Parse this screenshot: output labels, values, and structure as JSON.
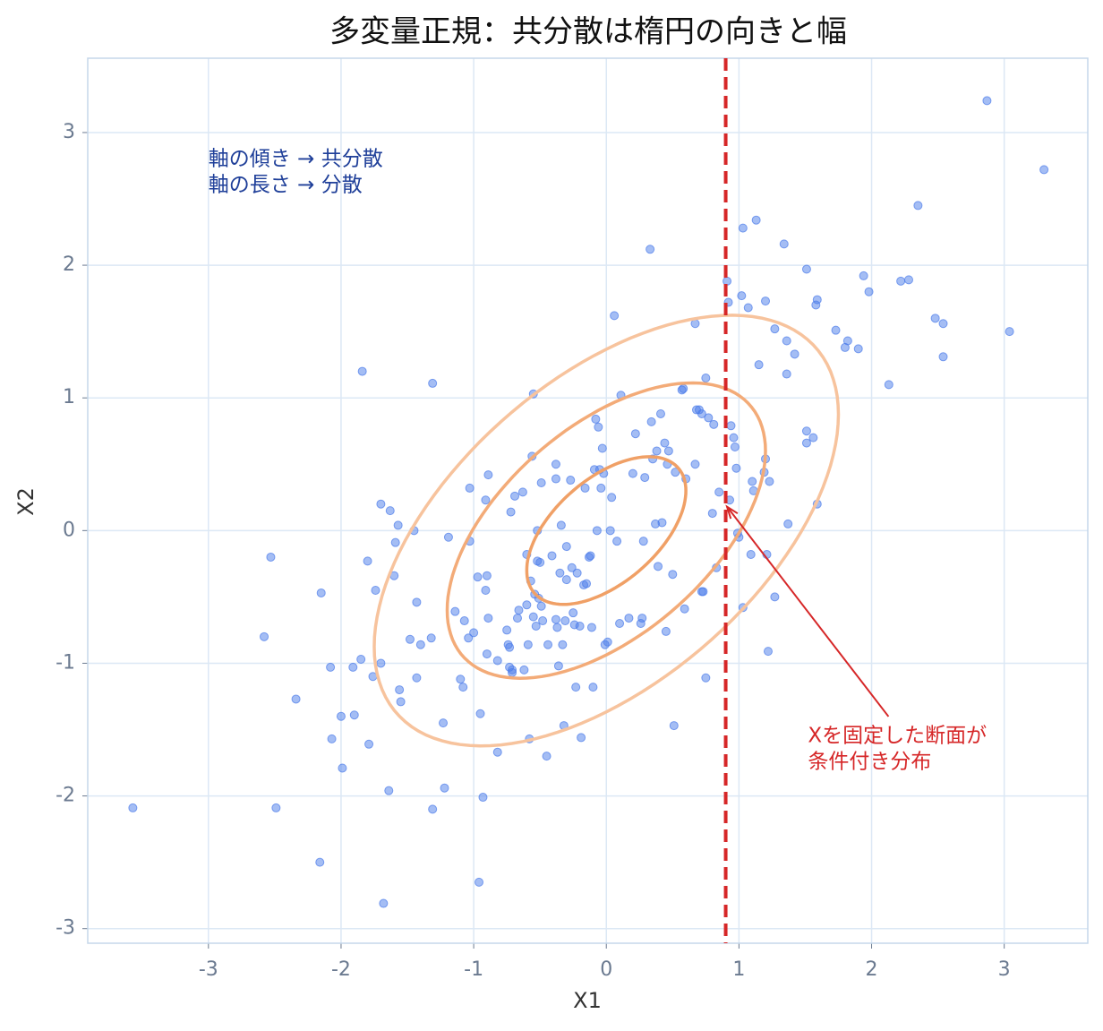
{
  "chart_data": {
    "type": "scatter",
    "title": "多変量正規：共分散は楕円の向きと幅",
    "x_label": "X1",
    "y_label": "X2",
    "xlim": [
      -3.91,
      3.63
    ],
    "ylim": [
      -3.11,
      3.56
    ],
    "xticks": [
      -3,
      -2,
      -1,
      0,
      1,
      2,
      3
    ],
    "yticks": [
      -3,
      -2,
      -1,
      0,
      1,
      2,
      3
    ],
    "grid": true,
    "points": {
      "color": "#4a7bea",
      "x": [
        -3.57,
        -2.53,
        -2.58,
        -2.49,
        -2.34,
        -2.15,
        -2.16,
        -2.08,
        -2.07,
        -2.0,
        -1.99,
        -1.91,
        -1.9,
        -1.85,
        -1.84,
        -1.8,
        -1.79,
        -1.76,
        -1.74,
        -1.7,
        -1.7,
        -1.68,
        -1.64,
        -1.63,
        -1.6,
        -1.59,
        -1.57,
        -1.56,
        -1.55,
        -1.48,
        -1.45,
        -1.43,
        -1.43,
        -1.4,
        -1.32,
        -1.31,
        -1.31,
        -1.23,
        -1.22,
        -1.19,
        -1.14,
        -1.1,
        -1.08,
        -1.07,
        -1.04,
        -1.03,
        -1.03,
        -1.0,
        -0.97,
        -0.96,
        -0.95,
        -0.93,
        -0.91,
        -0.91,
        -0.9,
        -0.9,
        -0.89,
        -0.89,
        -0.82,
        -0.82,
        -0.75,
        -0.74,
        -0.73,
        -0.73,
        -0.72,
        -0.71,
        -0.71,
        -0.69,
        -0.67,
        -0.66,
        -0.63,
        -0.62,
        -0.6,
        -0.6,
        -0.59,
        -0.58,
        -0.57,
        -0.56,
        -0.55,
        -0.55,
        -0.54,
        -0.53,
        -0.52,
        -0.52,
        -0.51,
        -0.5,
        -0.49,
        -0.49,
        -0.48,
        -0.45,
        -0.44,
        -0.41,
        -0.38,
        -0.38,
        -0.38,
        -0.37,
        -0.36,
        -0.35,
        -0.34,
        -0.33,
        -0.32,
        -0.31,
        -0.3,
        -0.3,
        -0.27,
        -0.26,
        -0.25,
        -0.24,
        -0.23,
        -0.22,
        -0.2,
        -0.19,
        -0.17,
        -0.16,
        -0.15,
        -0.13,
        -0.12,
        -0.11,
        -0.1,
        -0.09,
        -0.08,
        -0.07,
        -0.06,
        -0.05,
        -0.04,
        -0.03,
        -0.02,
        -0.01,
        0.01,
        0.03,
        0.04,
        0.06,
        0.08,
        0.1,
        0.11,
        0.17,
        0.2,
        0.22,
        0.26,
        0.27,
        0.28,
        0.29,
        0.33,
        0.34,
        0.35,
        0.37,
        0.38,
        0.39,
        0.41,
        0.42,
        0.44,
        0.45,
        0.46,
        0.47,
        0.5,
        0.51,
        0.52,
        0.57,
        0.58,
        0.59,
        0.6,
        0.67,
        0.67,
        0.68,
        0.7,
        0.72,
        0.72,
        0.73,
        0.75,
        0.75,
        0.77,
        0.8,
        0.81,
        0.83,
        0.85,
        0.91,
        0.92,
        0.93,
        0.94,
        0.96,
        0.97,
        0.98,
        0.99,
        1.0,
        1.02,
        1.03,
        1.03,
        1.07,
        1.09,
        1.1,
        1.11,
        1.13,
        1.15,
        1.19,
        1.2,
        1.2,
        1.21,
        1.22,
        1.23,
        1.27,
        1.27,
        1.34,
        1.36,
        1.36,
        1.37,
        1.42,
        1.51,
        1.51,
        1.51,
        1.56,
        1.58,
        1.59,
        1.59,
        1.73,
        1.8,
        1.82,
        1.9,
        1.94,
        1.98,
        2.13,
        2.22,
        2.28,
        2.35,
        2.48,
        2.54,
        2.54,
        2.87,
        3.04,
        3.3
      ],
      "y": [
        -2.09,
        -0.2,
        -0.8,
        -2.09,
        -1.27,
        -0.47,
        -2.5,
        -1.03,
        -1.57,
        -1.4,
        -1.79,
        -1.03,
        -1.39,
        -0.97,
        1.2,
        -0.23,
        -1.61,
        -1.1,
        -0.45,
        0.2,
        -1.0,
        -2.81,
        -1.96,
        0.15,
        -0.34,
        -0.09,
        0.04,
        -1.2,
        -1.29,
        -0.82,
        0.0,
        -1.11,
        -0.54,
        -0.86,
        -0.81,
        -2.1,
        1.11,
        -1.45,
        -1.94,
        -0.05,
        -0.61,
        -1.12,
        -1.18,
        -0.68,
        -0.81,
        -0.08,
        0.32,
        -0.77,
        -0.35,
        -2.65,
        -1.38,
        -2.01,
        0.23,
        -0.45,
        -0.93,
        -0.34,
        0.42,
        -0.66,
        -1.67,
        -0.98,
        -0.75,
        -0.86,
        -0.88,
        -1.03,
        0.14,
        -1.07,
        -1.05,
        0.26,
        -0.66,
        -0.6,
        0.29,
        -1.05,
        -0.18,
        -0.56,
        -0.86,
        -1.57,
        -0.38,
        0.56,
        -0.65,
        1.03,
        -0.48,
        -0.72,
        -0.23,
        0.0,
        -0.51,
        -0.24,
        0.36,
        -0.57,
        -0.68,
        -1.7,
        -0.86,
        -0.19,
        0.5,
        0.39,
        -0.67,
        -0.73,
        -1.02,
        -0.32,
        0.04,
        -0.86,
        -1.47,
        -0.68,
        -0.37,
        -0.12,
        0.38,
        -0.28,
        -0.62,
        -0.71,
        -1.18,
        -0.32,
        -0.72,
        -1.56,
        -0.41,
        0.32,
        -0.4,
        -0.2,
        -0.19,
        -0.73,
        -1.18,
        0.46,
        0.84,
        0.0,
        0.78,
        0.46,
        0.32,
        0.62,
        0.43,
        -0.86,
        -0.84,
        0.0,
        0.25,
        1.62,
        -0.08,
        -0.7,
        1.02,
        -0.66,
        0.43,
        0.73,
        -0.7,
        -0.66,
        -0.08,
        0.4,
        2.12,
        0.82,
        0.54,
        0.05,
        0.6,
        -0.27,
        0.88,
        0.06,
        0.66,
        -0.76,
        0.5,
        0.6,
        -0.33,
        -1.47,
        0.44,
        1.06,
        1.07,
        -0.59,
        0.39,
        0.5,
        1.56,
        0.91,
        0.91,
        0.88,
        -0.46,
        -0.46,
        1.15,
        -1.11,
        0.85,
        0.13,
        0.8,
        -0.28,
        0.29,
        1.88,
        1.72,
        0.23,
        0.79,
        0.7,
        0.63,
        0.47,
        -0.02,
        -0.05,
        1.77,
        2.28,
        -0.58,
        1.68,
        -0.18,
        0.37,
        0.3,
        2.34,
        1.25,
        0.44,
        0.54,
        1.73,
        -0.18,
        -0.91,
        0.37,
        1.52,
        -0.5,
        2.16,
        1.43,
        1.18,
        0.05,
        1.33,
        1.97,
        0.75,
        0.66,
        0.7,
        1.7,
        1.74,
        0.2,
        1.51,
        1.38,
        1.43,
        1.37,
        1.92,
        1.8,
        1.1,
        1.88,
        1.89,
        2.45,
        1.6,
        1.56,
        1.31,
        3.24,
        1.5,
        2.72
      ]
    },
    "ellipse": {
      "center": [
        0,
        0
      ],
      "cov": [
        [
          1,
          0.5
        ],
        [
          0.5,
          0.86
        ]
      ],
      "levels": [
        0.6,
        1.2,
        1.75
      ],
      "colors": [
        "#f0a066",
        "#f3ab78",
        "#f7c39d"
      ]
    },
    "vline": {
      "x": 0.9,
      "color": "#d62728"
    },
    "note": {
      "lines": [
        "軸の傾き → 共分散",
        "軸の長さ → 分散"
      ],
      "x": -3.0,
      "y": 2.75,
      "color": "#1f3f99"
    },
    "annotation": {
      "lines": [
        "Xを固定した断面が",
        "条件付き分布"
      ],
      "xy": [
        0.91,
        0.18
      ],
      "xytext": [
        1.52,
        -1.55
      ],
      "color": "#d62728"
    }
  }
}
